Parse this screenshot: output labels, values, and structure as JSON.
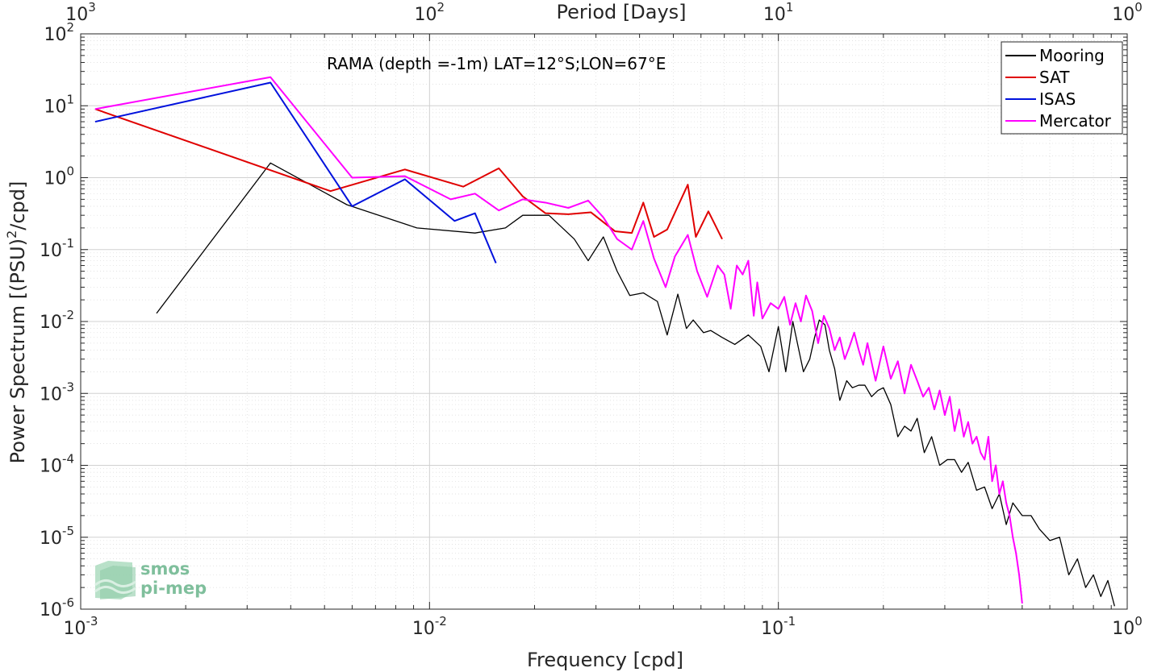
{
  "chart_data": {
    "type": "line",
    "title": "",
    "annotation": "RAMA (depth =-1m) LAT=12°S;LON=67°E",
    "xlabel": "Frequency [cpd]",
    "ylabel": "Power Spectrum [(PSU)",
    "ylabel_sup": "2",
    "ylabel_tail": "/cpd]",
    "top_xlabel": "Period [Days]",
    "xscale": "log",
    "yscale": "log",
    "xlim": [
      0.001,
      1
    ],
    "ylim": [
      1e-06,
      100
    ],
    "grid": true,
    "minor_grid": true,
    "legend_position": "top-right",
    "x_ticks": [
      {
        "value": 0.001,
        "base": "10",
        "exp": "-3"
      },
      {
        "value": 0.01,
        "base": "10",
        "exp": "-2"
      },
      {
        "value": 0.1,
        "base": "10",
        "exp": "-1"
      },
      {
        "value": 1,
        "base": "10",
        "exp": "0"
      }
    ],
    "top_ticks": [
      {
        "value": 0.001,
        "base": "10",
        "exp": "3"
      },
      {
        "value": 0.01,
        "base": "10",
        "exp": "2"
      },
      {
        "value": 0.1,
        "base": "10",
        "exp": "1"
      },
      {
        "value": 1,
        "base": "10",
        "exp": "0"
      }
    ],
    "y_ticks": [
      {
        "value": 1e-06,
        "base": "10",
        "exp": "-6"
      },
      {
        "value": 1e-05,
        "base": "10",
        "exp": "-5"
      },
      {
        "value": 0.0001,
        "base": "10",
        "exp": "-4"
      },
      {
        "value": 0.001,
        "base": "10",
        "exp": "-3"
      },
      {
        "value": 0.01,
        "base": "10",
        "exp": "-2"
      },
      {
        "value": 0.1,
        "base": "10",
        "exp": "-1"
      },
      {
        "value": 1,
        "base": "10",
        "exp": "0"
      },
      {
        "value": 10,
        "base": "10",
        "exp": "1"
      },
      {
        "value": 100,
        "base": "10",
        "exp": "2"
      }
    ],
    "series": [
      {
        "name": "Mooring",
        "color": "#000000",
        "x": [
          0.00165,
          0.0035,
          0.0058,
          0.0092,
          0.0135,
          0.0165,
          0.0185,
          0.022,
          0.026,
          0.0285,
          0.0315,
          0.0345,
          0.0375,
          0.041,
          0.045,
          0.048,
          0.0515,
          0.0545,
          0.057,
          0.061,
          0.064,
          0.069,
          0.075,
          0.082,
          0.089,
          0.094,
          0.1,
          0.105,
          0.11,
          0.118,
          0.123,
          0.127,
          0.131,
          0.136,
          0.14,
          0.145,
          0.15,
          0.157,
          0.163,
          0.17,
          0.177,
          0.185,
          0.193,
          0.2,
          0.21,
          0.22,
          0.23,
          0.24,
          0.25,
          0.262,
          0.275,
          0.29,
          0.305,
          0.32,
          0.335,
          0.35,
          0.37,
          0.39,
          0.41,
          0.43,
          0.45,
          0.47,
          0.5,
          0.53,
          0.56,
          0.6,
          0.64,
          0.68,
          0.72,
          0.76,
          0.8,
          0.84,
          0.88,
          0.92
        ],
        "y": [
          0.013,
          1.6,
          0.42,
          0.2,
          0.17,
          0.2,
          0.3,
          0.3,
          0.14,
          0.07,
          0.15,
          0.05,
          0.023,
          0.025,
          0.019,
          0.0065,
          0.024,
          0.008,
          0.0105,
          0.007,
          0.0075,
          0.006,
          0.0048,
          0.0065,
          0.0045,
          0.002,
          0.0085,
          0.002,
          0.01,
          0.002,
          0.003,
          0.006,
          0.0105,
          0.009,
          0.004,
          0.0022,
          0.0008,
          0.0015,
          0.0012,
          0.0013,
          0.0013,
          0.0009,
          0.0011,
          0.0012,
          0.0007,
          0.00025,
          0.00035,
          0.0003,
          0.00045,
          0.00015,
          0.00025,
          0.0001,
          0.00012,
          0.00012,
          8e-05,
          0.00011,
          4.5e-05,
          5e-05,
          2.5e-05,
          4e-05,
          1.5e-05,
          3e-05,
          2e-05,
          2e-05,
          1.3e-05,
          9e-06,
          1e-05,
          3e-06,
          5e-06,
          2e-06,
          3e-06,
          1.5e-06,
          2.5e-06,
          1.1e-06
        ]
      },
      {
        "name": "SAT",
        "color": "#e00000",
        "x": [
          0.0011,
          0.0052,
          0.0085,
          0.0125,
          0.0158,
          0.0185,
          0.0215,
          0.025,
          0.029,
          0.034,
          0.038,
          0.041,
          0.044,
          0.048,
          0.055,
          0.058,
          0.063,
          0.069
        ],
        "y": [
          9,
          0.65,
          1.3,
          0.75,
          1.35,
          0.55,
          0.32,
          0.31,
          0.33,
          0.18,
          0.17,
          0.45,
          0.15,
          0.19,
          0.8,
          0.15,
          0.34,
          0.14
        ]
      },
      {
        "name": "ISAS",
        "color": "#0011dd",
        "x": [
          0.0011,
          0.0035,
          0.006,
          0.0085,
          0.0118,
          0.0135,
          0.0155
        ],
        "y": [
          6,
          21,
          0.4,
          0.95,
          0.25,
          0.32,
          0.065
        ]
      },
      {
        "name": "Mercator",
        "color": "#ff00ff",
        "x": [
          0.0011,
          0.0035,
          0.006,
          0.0085,
          0.0115,
          0.0135,
          0.0158,
          0.0185,
          0.0215,
          0.025,
          0.0285,
          0.0315,
          0.0345,
          0.038,
          0.041,
          0.044,
          0.0475,
          0.0505,
          0.055,
          0.0585,
          0.0625,
          0.067,
          0.07,
          0.073,
          0.076,
          0.079,
          0.082,
          0.085,
          0.087,
          0.09,
          0.095,
          0.1,
          0.104,
          0.108,
          0.112,
          0.116,
          0.12,
          0.125,
          0.13,
          0.135,
          0.14,
          0.145,
          0.15,
          0.155,
          0.16,
          0.165,
          0.17,
          0.175,
          0.18,
          0.19,
          0.2,
          0.21,
          0.22,
          0.23,
          0.24,
          0.25,
          0.26,
          0.27,
          0.28,
          0.29,
          0.3,
          0.31,
          0.32,
          0.33,
          0.34,
          0.35,
          0.36,
          0.37,
          0.38,
          0.39,
          0.4,
          0.41,
          0.42,
          0.43,
          0.44,
          0.45,
          0.46,
          0.47,
          0.48,
          0.49,
          0.5
        ],
        "y": [
          9,
          25,
          1.0,
          1.05,
          0.5,
          0.6,
          0.35,
          0.5,
          0.45,
          0.38,
          0.48,
          0.28,
          0.14,
          0.1,
          0.25,
          0.075,
          0.03,
          0.08,
          0.16,
          0.05,
          0.022,
          0.06,
          0.045,
          0.015,
          0.06,
          0.045,
          0.07,
          0.012,
          0.035,
          0.011,
          0.018,
          0.015,
          0.022,
          0.009,
          0.018,
          0.01,
          0.023,
          0.014,
          0.005,
          0.012,
          0.008,
          0.004,
          0.006,
          0.003,
          0.0045,
          0.007,
          0.004,
          0.0025,
          0.005,
          0.0015,
          0.0045,
          0.0016,
          0.0028,
          0.001,
          0.0025,
          0.0015,
          0.0009,
          0.0012,
          0.0006,
          0.0011,
          0.0005,
          0.0009,
          0.0003,
          0.0006,
          0.00025,
          0.0004,
          0.0002,
          0.00025,
          0.00015,
          0.00012,
          0.00025,
          6e-05,
          0.0001,
          4e-05,
          6e-05,
          3e-05,
          2e-05,
          1e-05,
          6e-06,
          3e-06,
          1.2e-06
        ]
      }
    ]
  },
  "logo": {
    "line1": "smos",
    "line2": "pi-mep",
    "color": "#7fbf9c"
  }
}
